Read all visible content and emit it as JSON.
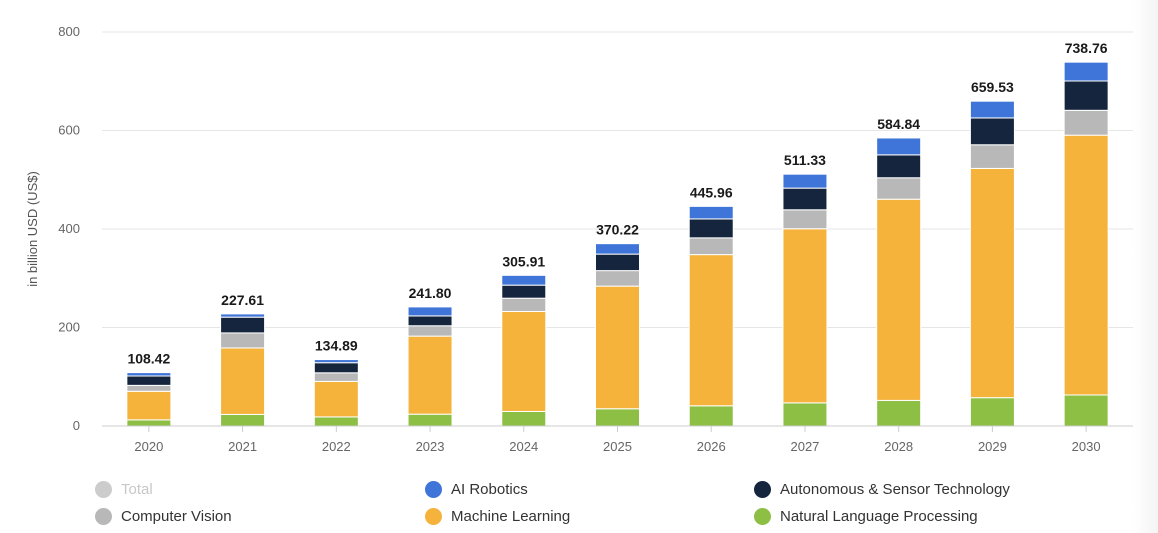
{
  "chart_data": {
    "type": "bar",
    "stacked": true,
    "title": "",
    "xlabel": "",
    "ylabel": "in billion USD (US$)",
    "ylim": [
      0,
      800
    ],
    "yticks": [
      0,
      200,
      400,
      600,
      800
    ],
    "grid": true,
    "legend_position": "bottom",
    "categories": [
      "2020",
      "2021",
      "2022",
      "2023",
      "2024",
      "2025",
      "2026",
      "2027",
      "2028",
      "2029",
      "2030"
    ],
    "totals": [
      108.42,
      227.61,
      134.89,
      241.8,
      305.91,
      370.22,
      445.96,
      511.33,
      584.84,
      659.53,
      738.76
    ],
    "total_labels": [
      "108.42",
      "227.61",
      "134.89",
      "241.80",
      "305.91",
      "370.22",
      "445.96",
      "511.33",
      "584.84",
      "659.53",
      "738.76"
    ],
    "series": [
      {
        "name": "Natural Language Processing",
        "color": "#8dbf44",
        "values": [
          12.5,
          23.5,
          18.5,
          24.0,
          29.5,
          35.0,
          41.0,
          47.0,
          52.0,
          57.5,
          63.0
        ]
      },
      {
        "name": "Machine Learning",
        "color": "#f5b33b",
        "values": [
          58.0,
          135.0,
          72.0,
          158.5,
          203.0,
          249.0,
          307.0,
          353.5,
          408.5,
          465.5,
          527.5
        ]
      },
      {
        "name": "Computer Vision",
        "color": "#b8b8b8",
        "values": [
          12.0,
          30.5,
          17.5,
          21.0,
          27.0,
          31.5,
          34.0,
          38.5,
          43.5,
          48.0,
          50.5
        ]
      },
      {
        "name": "Autonomous & Sensor Technology",
        "color": "#14253d",
        "values": [
          19.0,
          32.0,
          20.5,
          20.0,
          26.5,
          33.5,
          38.5,
          44.0,
          46.5,
          54.5,
          59.5
        ]
      },
      {
        "name": "AI Robotics",
        "color": "#3f74d8",
        "values": [
          6.92,
          6.61,
          6.39,
          18.3,
          19.91,
          21.22,
          25.46,
          28.33,
          34.34,
          34.03,
          38.26
        ]
      }
    ],
    "colors": {
      "axis_text": "#666666",
      "label_text": "#1a1a1a",
      "grid": "#e6e6e6",
      "axis_line": "#cccccc"
    }
  },
  "legend": {
    "items": [
      {
        "key": "total",
        "label": "Total",
        "color": "#cccccc",
        "disabled": true
      },
      {
        "key": "ai-robotics",
        "label": "AI Robotics",
        "color": "#3f74d8",
        "disabled": false
      },
      {
        "key": "autonomous-sensor",
        "label": "Autonomous & Sensor Technology",
        "color": "#14253d",
        "disabled": false
      },
      {
        "key": "computer-vision",
        "label": "Computer Vision",
        "color": "#b8b8b8",
        "disabled": false
      },
      {
        "key": "machine-learning",
        "label": "Machine Learning",
        "color": "#f5b33b",
        "disabled": false
      },
      {
        "key": "nlp",
        "label": "Natural Language Processing",
        "color": "#8dbf44",
        "disabled": false
      }
    ]
  }
}
